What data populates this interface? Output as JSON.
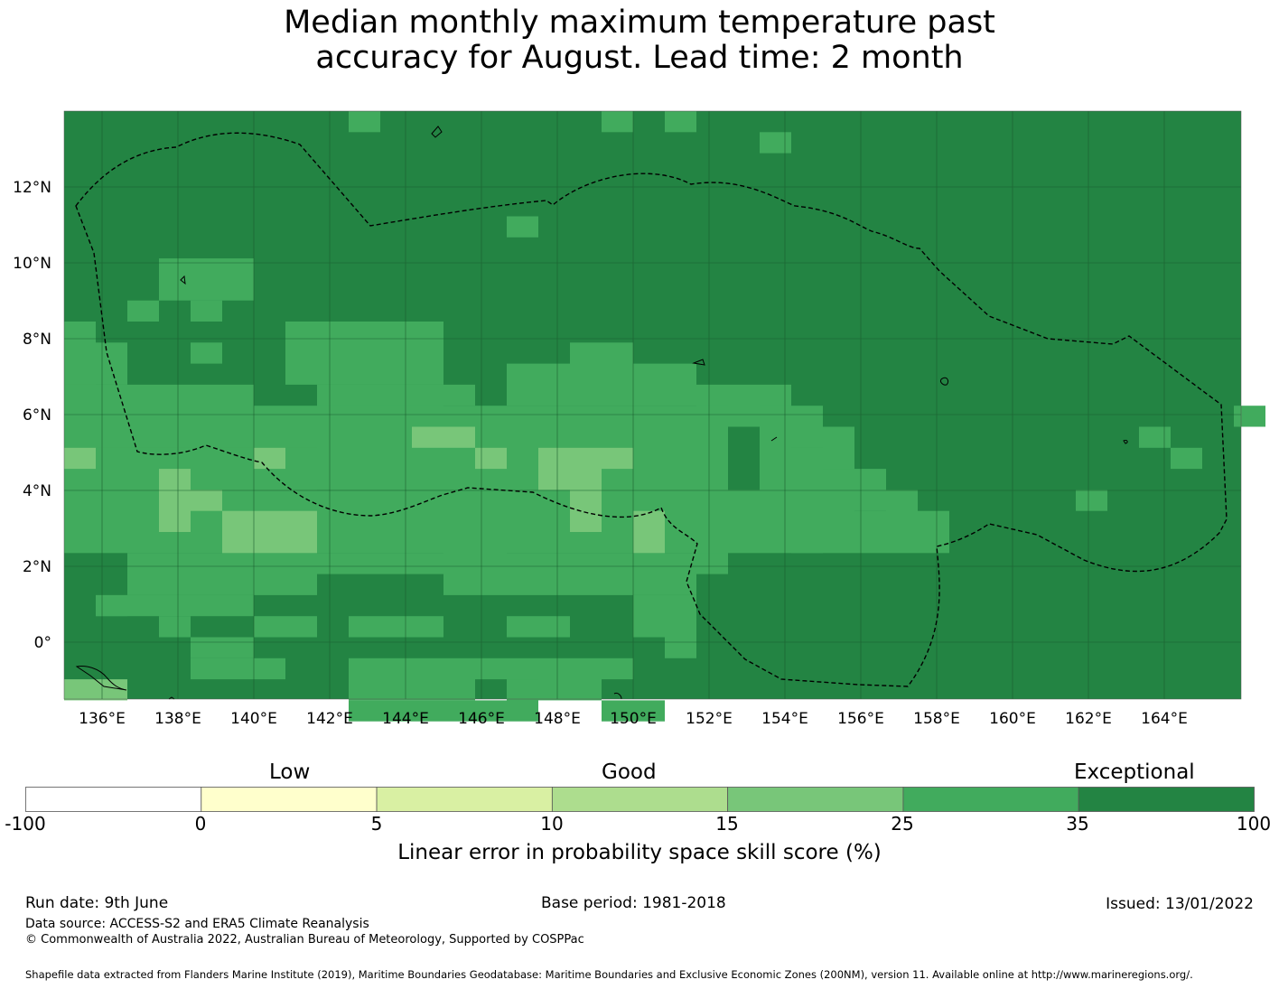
{
  "title_line1": "Median monthly maximum temperature past",
  "title_line2": "accuracy for August. Lead time: 2 month",
  "map": {
    "lon_labels": [
      "136°E",
      "138°E",
      "140°E",
      "142°E",
      "144°E",
      "146°E",
      "148°E",
      "150°E",
      "152°E",
      "154°E",
      "156°E",
      "158°E",
      "160°E",
      "162°E",
      "164°E"
    ],
    "lat_labels": [
      "12°N",
      "10°N",
      "8°N",
      "6°N",
      "4°N",
      "2°N",
      "0°"
    ],
    "base_color": "#238443",
    "light_cells": [
      [
        9,
        0
      ],
      [
        14,
        0
      ],
      [
        17,
        0
      ],
      [
        24,
        0
      ],
      [
        23,
        1
      ],
      [
        4,
        5
      ],
      [
        5,
        5
      ],
      [
        6,
        5
      ],
      [
        7,
        5
      ],
      [
        8,
        5
      ],
      [
        9,
        5
      ],
      [
        10,
        5
      ],
      [
        11,
        5
      ],
      [
        12,
        5
      ],
      [
        13,
        5
      ],
      [
        14,
        5
      ],
      [
        15,
        5
      ],
      [
        16,
        5
      ],
      [
        17,
        5
      ],
      [
        18,
        5
      ],
      [
        19,
        5
      ],
      [
        20,
        5
      ],
      [
        21,
        5
      ],
      [
        22,
        5
      ],
      [
        23,
        5
      ],
      [
        24,
        5
      ],
      [
        25,
        5
      ],
      [
        26,
        5
      ],
      [
        27,
        5
      ],
      [
        28,
        5
      ],
      [
        29,
        5
      ],
      [
        30,
        5
      ],
      [
        31,
        5
      ],
      [
        32,
        5
      ],
      [
        33,
        5
      ],
      [
        34,
        5
      ],
      [
        35,
        5
      ],
      [
        36,
        5
      ],
      [
        37,
        5
      ],
      [
        7,
        6
      ],
      [
        8,
        6
      ],
      [
        9,
        6
      ],
      [
        10,
        6
      ],
      [
        11,
        6
      ],
      [
        12,
        6
      ],
      [
        13,
        6
      ],
      [
        14,
        6
      ],
      [
        15,
        6
      ],
      [
        16,
        6
      ],
      [
        17,
        6
      ],
      [
        18,
        6
      ],
      [
        19,
        6
      ],
      [
        20,
        6
      ],
      [
        21,
        6
      ],
      [
        22,
        6
      ],
      [
        23,
        6
      ],
      [
        24,
        6
      ],
      [
        25,
        6
      ],
      [
        26,
        6
      ],
      [
        27,
        6
      ],
      [
        28,
        6
      ],
      [
        29,
        6
      ],
      [
        30,
        6
      ],
      [
        31,
        6
      ],
      [
        32,
        6
      ],
      [
        33,
        6
      ],
      [
        34,
        6
      ],
      [
        35,
        6
      ],
      [
        36,
        6
      ],
      [
        37,
        6
      ],
      [
        38,
        6
      ],
      [
        39,
        6
      ],
      [
        40,
        6
      ],
      [
        41,
        6
      ],
      [
        42,
        6
      ],
      [
        43,
        6
      ],
      [
        44,
        6
      ],
      [
        45,
        6
      ],
      [
        46,
        6
      ],
      [
        47,
        6
      ],
      [
        48,
        6
      ],
      [
        49,
        6
      ],
      [
        50,
        6
      ],
      [
        51,
        6
      ],
      [
        52,
        6
      ],
      [
        53,
        6
      ],
      [
        54,
        6
      ],
      [
        55,
        6
      ],
      [
        56,
        6
      ],
      [
        0,
        11
      ],
      [
        1,
        11
      ],
      [
        2,
        11
      ],
      [
        3,
        11
      ],
      [
        4,
        11
      ],
      [
        5,
        11
      ],
      [
        6,
        11
      ],
      [
        7,
        11
      ],
      [
        8,
        11
      ],
      [
        9,
        11
      ],
      [
        10,
        11
      ],
      [
        11,
        11
      ],
      [
        12,
        11
      ],
      [
        13,
        11
      ],
      [
        14,
        11
      ],
      [
        15,
        11
      ],
      [
        16,
        11
      ],
      [
        17,
        11
      ],
      [
        18,
        11
      ],
      [
        19,
        11
      ],
      [
        20,
        11
      ],
      [
        21,
        11
      ],
      [
        22,
        11
      ],
      [
        23,
        11
      ],
      [
        24,
        11
      ],
      [
        25,
        11
      ],
      [
        26,
        11
      ],
      [
        27,
        11
      ],
      [
        28,
        11
      ],
      [
        29,
        11
      ],
      [
        30,
        11
      ],
      [
        31,
        11
      ],
      [
        32,
        11
      ],
      [
        33,
        11
      ],
      [
        34,
        11
      ],
      [
        35,
        11
      ],
      [
        36,
        11
      ],
      [
        37,
        11
      ],
      [
        5,
        7
      ],
      [
        6,
        7
      ],
      [
        7,
        7
      ],
      [
        8,
        7
      ],
      [
        9,
        7
      ],
      [
        10,
        7
      ],
      [
        11,
        7
      ],
      [
        12,
        7
      ],
      [
        13,
        7
      ],
      [
        14,
        7
      ],
      [
        15,
        7
      ],
      [
        16,
        7
      ],
      [
        17,
        7
      ],
      [
        18,
        7
      ],
      [
        19,
        7
      ],
      [
        20,
        7
      ],
      [
        21,
        7
      ],
      [
        22,
        7
      ],
      [
        23,
        7
      ],
      [
        24,
        7
      ],
      [
        25,
        7
      ],
      [
        26,
        7
      ],
      [
        27,
        7
      ],
      [
        28,
        7
      ],
      [
        29,
        7
      ],
      [
        30,
        7
      ],
      [
        31,
        7
      ],
      [
        32,
        7
      ],
      [
        33,
        7
      ],
      [
        34,
        7
      ],
      [
        35,
        7
      ],
      [
        36,
        7
      ],
      [
        37,
        7
      ],
      [
        3,
        12
      ],
      [
        4,
        12
      ],
      [
        5,
        12
      ],
      [
        6,
        12
      ],
      [
        7,
        12
      ],
      [
        8,
        12
      ],
      [
        9,
        12
      ],
      [
        10,
        12
      ],
      [
        11,
        12
      ],
      [
        12,
        12
      ],
      [
        13,
        12
      ],
      [
        14,
        12
      ],
      [
        15,
        12
      ],
      [
        16,
        12
      ],
      [
        17,
        12
      ],
      [
        18,
        12
      ],
      [
        19,
        12
      ],
      [
        20,
        12
      ],
      [
        21,
        12
      ],
      [
        22,
        12
      ],
      [
        23,
        12
      ],
      [
        24,
        12
      ],
      [
        25,
        12
      ],
      [
        26,
        12
      ],
      [
        27,
        12
      ],
      [
        28,
        12
      ],
      [
        29,
        12
      ],
      [
        30,
        12
      ],
      [
        31,
        12
      ],
      [
        32,
        12
      ],
      [
        33,
        12
      ],
      [
        34,
        12
      ],
      [
        35,
        12
      ],
      [
        36,
        12
      ],
      [
        37,
        12
      ]
    ]
  },
  "colorbar": {
    "categories": [
      "Low",
      "Good",
      "Exceptional"
    ],
    "ticks": [
      "-100",
      "0",
      "5",
      "10",
      "15",
      "25",
      "35",
      "100"
    ],
    "colors": [
      "#ffffff",
      "#ffffcc",
      "#d9f0a3",
      "#addd8e",
      "#78c679",
      "#41ab5d",
      "#238443"
    ],
    "label": "Linear error in probability space skill score (%)"
  },
  "footer": {
    "run_date": "Run date: 9th June",
    "base_period": "Base period: 1981-2018",
    "issued": "Issued: 13/01/2022",
    "data_source": "Data source: ACCESS-S2 and ERA5 Climate Reanalysis",
    "copyright": "© Commonwealth of Australia 2022, Australian Bureau of Meteorology, Supported by COSPPac",
    "shapefile": "Shapefile data extracted from Flanders Marine Institute (2019), Maritime Boundaries Geodatabase: Maritime Boundaries and Exclusive Economic Zones (200NM), version 11. Available online at http://www.marineregions.org/."
  }
}
